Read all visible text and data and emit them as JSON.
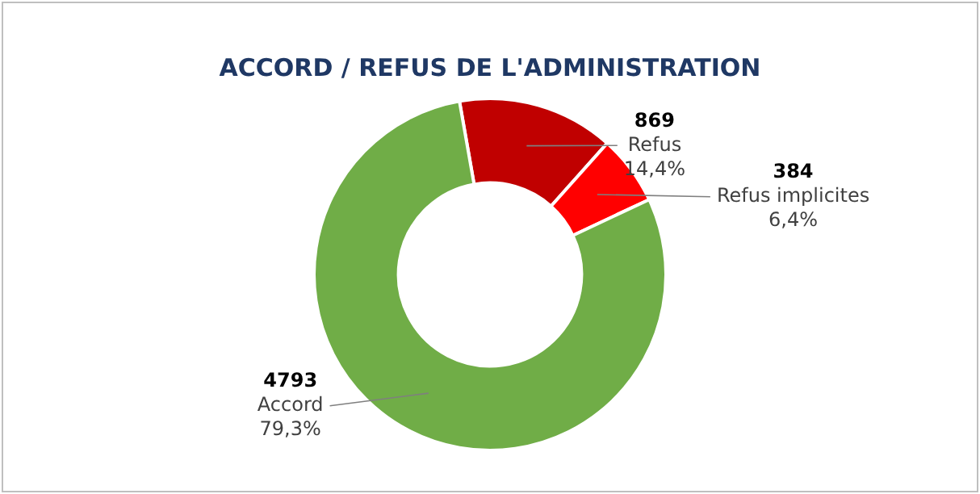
{
  "chart_data": {
    "type": "donut",
    "title": "ACCORD / REFUS DE L'ADMINISTRATION",
    "categories": [
      "Refus",
      "Refus implicites",
      "Accord"
    ],
    "values": [
      14.4,
      6.4,
      79.3
    ],
    "colors": [
      "#c00000",
      "#ff0000",
      "#70ad47"
    ],
    "value_labels": [
      "14,4%",
      "6,4%",
      "79,3%"
    ],
    "annotations": [
      "869",
      "384",
      "4793"
    ],
    "legend": false
  }
}
